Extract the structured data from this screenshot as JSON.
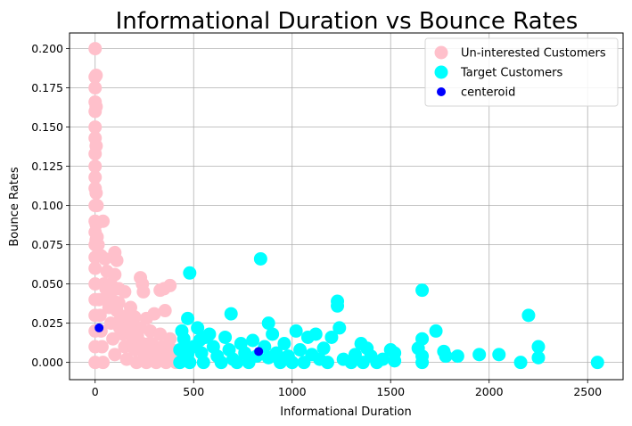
{
  "chart_data": {
    "type": "scatter",
    "title": "Informational Duration vs Bounce Rates",
    "xlabel": "Informational Duration",
    "ylabel": "Bounce Rates",
    "xlim": [
      -130,
      2680
    ],
    "ylim": [
      -0.011,
      0.21
    ],
    "xticks": [
      0,
      500,
      1000,
      1500,
      2000,
      2500
    ],
    "xtick_labels": [
      "0",
      "500",
      "1000",
      "1500",
      "2000",
      "2500"
    ],
    "yticks": [
      0.0,
      0.025,
      0.05,
      0.075,
      0.1,
      0.125,
      0.15,
      0.175,
      0.2
    ],
    "ytick_labels": [
      "0.000",
      "0.025",
      "0.050",
      "0.075",
      "0.100",
      "0.125",
      "0.150",
      "0.175",
      "0.200"
    ],
    "grid": true,
    "legend_position": "top-right",
    "series": [
      {
        "name": "Un-interested Customers",
        "color": "#ffc0cb",
        "marker_size": "large",
        "points": [
          [
            0,
            0.2
          ],
          [
            0,
            0.182
          ],
          [
            0,
            0.175
          ],
          [
            0,
            0.166
          ],
          [
            0,
            0.16
          ],
          [
            0,
            0.15
          ],
          [
            0,
            0.143
          ],
          [
            0,
            0.133
          ],
          [
            0,
            0.125
          ],
          [
            0,
            0.118
          ],
          [
            0,
            0.111
          ],
          [
            0,
            0.1
          ],
          [
            0,
            0.09
          ],
          [
            0,
            0.083
          ],
          [
            0,
            0.075
          ],
          [
            0,
            0.067
          ],
          [
            0,
            0.06
          ],
          [
            0,
            0.05
          ],
          [
            0,
            0.04
          ],
          [
            0,
            0.03
          ],
          [
            0,
            0.02
          ],
          [
            0,
            0.01
          ],
          [
            0,
            0.0
          ],
          [
            5,
            0.183
          ],
          [
            5,
            0.163
          ],
          [
            5,
            0.138
          ],
          [
            5,
            0.108
          ],
          [
            5,
            0.088
          ],
          [
            5,
            0.078
          ],
          [
            10,
            0.1
          ],
          [
            10,
            0.08
          ],
          [
            10,
            0.068
          ],
          [
            15,
            0.075
          ],
          [
            40,
            0.09
          ],
          [
            30,
            0.068
          ],
          [
            50,
            0.066
          ],
          [
            100,
            0.07
          ],
          [
            110,
            0.065
          ],
          [
            100,
            0.056
          ],
          [
            60,
            0.058
          ],
          [
            80,
            0.05
          ],
          [
            120,
            0.047
          ],
          [
            150,
            0.045
          ],
          [
            180,
            0.035
          ],
          [
            230,
            0.054
          ],
          [
            240,
            0.05
          ],
          [
            245,
            0.045
          ],
          [
            350,
            0.047
          ],
          [
            380,
            0.049
          ],
          [
            330,
            0.046
          ],
          [
            355,
            0.033
          ],
          [
            300,
            0.031
          ],
          [
            260,
            0.028
          ],
          [
            200,
            0.029
          ],
          [
            20,
            0.04
          ],
          [
            25,
            0.03
          ],
          [
            30,
            0.02
          ],
          [
            35,
            0.01
          ],
          [
            40,
            0.0
          ],
          [
            60,
            0.042
          ],
          [
            70,
            0.035
          ],
          [
            80,
            0.025
          ],
          [
            90,
            0.015
          ],
          [
            100,
            0.005
          ],
          [
            120,
            0.038
          ],
          [
            130,
            0.028
          ],
          [
            140,
            0.018
          ],
          [
            150,
            0.01
          ],
          [
            160,
            0.002
          ],
          [
            180,
            0.025
          ],
          [
            190,
            0.015
          ],
          [
            200,
            0.008
          ],
          [
            210,
            0.0
          ],
          [
            230,
            0.022
          ],
          [
            240,
            0.012
          ],
          [
            250,
            0.005
          ],
          [
            260,
            0.0
          ],
          [
            280,
            0.02
          ],
          [
            290,
            0.012
          ],
          [
            300,
            0.005
          ],
          [
            310,
            0.0
          ],
          [
            330,
            0.018
          ],
          [
            340,
            0.01
          ],
          [
            350,
            0.003
          ],
          [
            360,
            0.0
          ],
          [
            380,
            0.015
          ],
          [
            390,
            0.008
          ],
          [
            400,
            0.002
          ],
          [
            410,
            0.0
          ],
          [
            420,
            0.006
          ],
          [
            45,
            0.05
          ],
          [
            55,
            0.047
          ],
          [
            75,
            0.044
          ],
          [
            95,
            0.039
          ],
          [
            110,
            0.033
          ],
          [
            125,
            0.022
          ],
          [
            165,
            0.03
          ],
          [
            185,
            0.02
          ],
          [
            215,
            0.017
          ],
          [
            275,
            0.012
          ],
          [
            320,
            0.008
          ],
          [
            370,
            0.004
          ]
        ]
      },
      {
        "name": "Target Customers",
        "color": "#00ffff",
        "marker_size": "large",
        "points": [
          [
            480,
            0.057
          ],
          [
            840,
            0.066
          ],
          [
            690,
            0.031
          ],
          [
            470,
            0.028
          ],
          [
            880,
            0.025
          ],
          [
            1020,
            0.02
          ],
          [
            1230,
            0.039
          ],
          [
            1230,
            0.036
          ],
          [
            1240,
            0.022
          ],
          [
            1660,
            0.046
          ],
          [
            2200,
            0.03
          ],
          [
            1730,
            0.02
          ],
          [
            1660,
            0.015
          ],
          [
            1640,
            0.009
          ],
          [
            1350,
            0.012
          ],
          [
            1380,
            0.009
          ],
          [
            1500,
            0.008
          ],
          [
            1770,
            0.007
          ],
          [
            1780,
            0.004
          ],
          [
            1840,
            0.004
          ],
          [
            1950,
            0.005
          ],
          [
            2050,
            0.005
          ],
          [
            2160,
            0.0
          ],
          [
            2250,
            0.01
          ],
          [
            2250,
            0.003
          ],
          [
            2550,
            0.0
          ],
          [
            1660,
            0.004
          ],
          [
            1660,
            0.0
          ],
          [
            440,
            0.02
          ],
          [
            450,
            0.015
          ],
          [
            460,
            0.01
          ],
          [
            470,
            0.005
          ],
          [
            480,
            0.0
          ],
          [
            520,
            0.022
          ],
          [
            530,
            0.014
          ],
          [
            540,
            0.006
          ],
          [
            550,
            0.0
          ],
          [
            580,
            0.018
          ],
          [
            600,
            0.01
          ],
          [
            620,
            0.004
          ],
          [
            640,
            0.0
          ],
          [
            660,
            0.016
          ],
          [
            680,
            0.008
          ],
          [
            700,
            0.002
          ],
          [
            720,
            0.0
          ],
          [
            740,
            0.012
          ],
          [
            760,
            0.006
          ],
          [
            780,
            0.0
          ],
          [
            800,
            0.014
          ],
          [
            820,
            0.004
          ],
          [
            860,
            0.01
          ],
          [
            880,
            0.003
          ],
          [
            900,
            0.018
          ],
          [
            920,
            0.006
          ],
          [
            940,
            0.0
          ],
          [
            960,
            0.012
          ],
          [
            980,
            0.004
          ],
          [
            1000,
            0.0
          ],
          [
            1040,
            0.008
          ],
          [
            1060,
            0.0
          ],
          [
            1080,
            0.016
          ],
          [
            1100,
            0.005
          ],
          [
            1120,
            0.018
          ],
          [
            1140,
            0.002
          ],
          [
            1160,
            0.009
          ],
          [
            1180,
            0.0
          ],
          [
            1200,
            0.016
          ],
          [
            1260,
            0.002
          ],
          [
            1300,
            0.0
          ],
          [
            1320,
            0.005
          ],
          [
            1360,
            0.0
          ],
          [
            1400,
            0.004
          ],
          [
            1430,
            0.0
          ],
          [
            1460,
            0.002
          ],
          [
            1520,
            0.006
          ],
          [
            1520,
            0.001
          ],
          [
            430,
            0.008
          ],
          [
            430,
            0.0
          ],
          [
            500,
            0.01
          ],
          [
            560,
            0.016
          ]
        ]
      },
      {
        "name": "centeroid",
        "color": "#0000ff",
        "marker_size": "small",
        "points": [
          [
            20,
            0.022
          ],
          [
            830,
            0.007
          ]
        ]
      }
    ]
  }
}
